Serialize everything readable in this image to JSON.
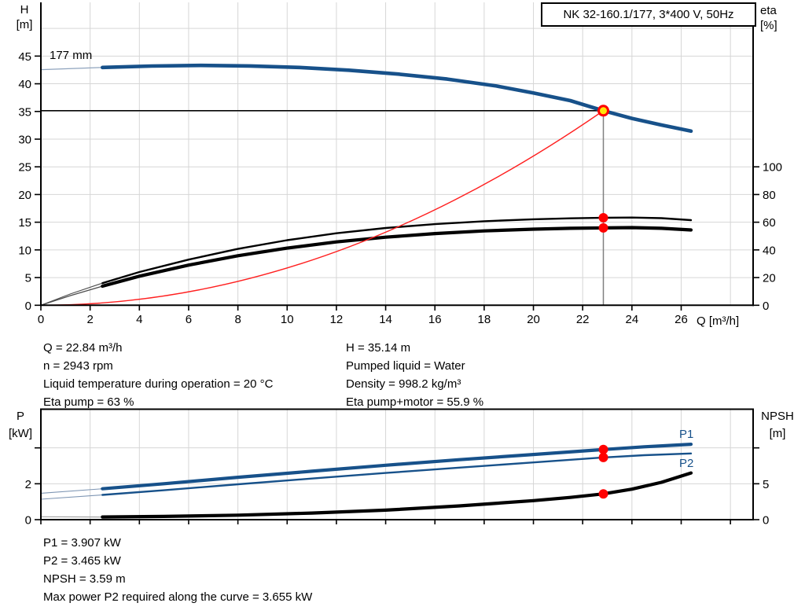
{
  "axes": {
    "h": "H",
    "h_unit": "[m]",
    "eta": "eta",
    "eta_unit": "[%]",
    "q": "Q [m³/h]",
    "p": "P",
    "p_unit": "[kW]",
    "npsh": "NPSH",
    "npsh_unit": "[m]"
  },
  "colors": {
    "grid": "#d6d6d6",
    "axis": "#000000",
    "text": "#000000",
    "curve_blue": "#17518a",
    "curve_red": "#ff1f1f",
    "dot_red": "#ff0000",
    "duty_yellow": "#ffe60a"
  },
  "info_left": [
    "Q = 22.84 m³/h",
    "n = 2943 rpm",
    "Liquid temperature during operation = 20 °C",
    "Eta pump = 63 %"
  ],
  "info_right": [
    "H = 35.14 m",
    "Pumped liquid = Water",
    "Density = 998.2 kg/m³",
    "Eta pump+motor = 55.9 %"
  ],
  "info_bottom": [
    "P1 = 3.907 kW",
    "P2 = 3.465 kW",
    "NPSH = 3.59 m",
    "Max power P2 required along the curve = 3.655 kW"
  ],
  "chart_data": [
    {
      "id": "hq-chart",
      "type": "line",
      "title": "NK 32-160.1/177, 3*400 V, 50Hz",
      "impeller_label": "177 mm",
      "xlabel": "Q [m³/h]",
      "ylabel_left": "H [m]",
      "ylabel_right": "eta [%]",
      "x_range": [
        0,
        28.92
      ],
      "y_left_range": [
        0,
        54.7
      ],
      "y_right_range": [
        0,
        218.8
      ],
      "grid": true,
      "duty_point": {
        "q": 22.84,
        "h": 35.14,
        "eta_pump": 63,
        "eta_pump_motor": 55.9
      },
      "x_ticks": [
        {
          "v": 0,
          "l": "0"
        },
        {
          "v": 2,
          "l": "2"
        },
        {
          "v": 4,
          "l": "4"
        },
        {
          "v": 6,
          "l": "6"
        },
        {
          "v": 8,
          "l": "8"
        },
        {
          "v": 10,
          "l": "10"
        },
        {
          "v": 12,
          "l": "12"
        },
        {
          "v": 14,
          "l": "14"
        },
        {
          "v": 16,
          "l": "16"
        },
        {
          "v": 18,
          "l": "18"
        },
        {
          "v": 20,
          "l": "20"
        },
        {
          "v": 22,
          "l": "22"
        },
        {
          "v": 24,
          "l": "24"
        },
        {
          "v": 26,
          "l": "26"
        }
      ],
      "y_left_ticks": [
        {
          "v": 0,
          "l": "0"
        },
        {
          "v": 5,
          "l": "5"
        },
        {
          "v": 10,
          "l": "10"
        },
        {
          "v": 15,
          "l": "15"
        },
        {
          "v": 20,
          "l": "20"
        },
        {
          "v": 25,
          "l": "25"
        },
        {
          "v": 30,
          "l": "30"
        },
        {
          "v": 35,
          "l": "35"
        },
        {
          "v": 40,
          "l": "40"
        },
        {
          "v": 45,
          "l": "45"
        }
      ],
      "y_right_ticks": [
        {
          "v": 0,
          "l": "0"
        },
        {
          "v": 20,
          "l": "20"
        },
        {
          "v": 40,
          "l": "40"
        },
        {
          "v": 60,
          "l": "60"
        },
        {
          "v": 80,
          "l": "80"
        },
        {
          "v": 100,
          "l": "100"
        }
      ],
      "x_grid": [
        2,
        4,
        6,
        8,
        10,
        12,
        14,
        16,
        18,
        20,
        22,
        24,
        26,
        28
      ],
      "y_grid": [
        5,
        10,
        15,
        20,
        25,
        30,
        35,
        40,
        45,
        50
      ],
      "series": [
        {
          "name": "pump-curve-lead",
          "axis": "h",
          "color": "#8ea3bd",
          "width": 1.2,
          "interactable": false,
          "points": [
            [
              0,
              42.55
            ],
            [
              2.5,
              42.95
            ]
          ]
        },
        {
          "name": "eta-pump-lead",
          "axis": "eta",
          "color": "#4d4d4d",
          "width": 1.1,
          "interactable": false,
          "points": [
            [
              0,
              0
            ],
            [
              1.2,
              8.2
            ],
            [
              2.5,
              16
            ]
          ]
        },
        {
          "name": "eta-pump-motor-lead",
          "axis": "eta",
          "color": "#4d4d4d",
          "width": 1.3,
          "interactable": false,
          "points": [
            [
              0,
              0
            ],
            [
              1.2,
              7
            ],
            [
              2.5,
              13.8
            ]
          ]
        },
        {
          "name": "eta-pump-curve",
          "axis": "eta",
          "color": "#000000",
          "width": 2.4,
          "interactable": true,
          "points": [
            [
              2.5,
              16
            ],
            [
              4,
              24
            ],
            [
              6,
              33
            ],
            [
              8,
              40.7
            ],
            [
              10,
              47
            ],
            [
              12,
              52
            ],
            [
              14,
              55.8
            ],
            [
              16,
              58.6
            ],
            [
              18,
              60.7
            ],
            [
              20,
              62.1
            ],
            [
              21.5,
              62.8
            ],
            [
              22.84,
              63.2
            ],
            [
              24,
              63.4
            ],
            [
              25.2,
              62.9
            ],
            [
              26.4,
              61.5
            ]
          ]
        },
        {
          "name": "eta-pump-motor-curve",
          "axis": "eta",
          "color": "#000000",
          "width": 4.2,
          "interactable": true,
          "points": [
            [
              2.5,
              13.8
            ],
            [
              4,
              21
            ],
            [
              6,
              29
            ],
            [
              8,
              35.8
            ],
            [
              10,
              41.3
            ],
            [
              12,
              45.8
            ],
            [
              14,
              49.2
            ],
            [
              16,
              51.8
            ],
            [
              18,
              53.7
            ],
            [
              20,
              55
            ],
            [
              21.5,
              55.6
            ],
            [
              22.84,
              55.9
            ],
            [
              24,
              56.1
            ],
            [
              25.2,
              55.6
            ],
            [
              26.4,
              54.4
            ]
          ]
        },
        {
          "name": "duty-flow-line",
          "axis": "h",
          "color": "#808080",
          "width": 1.5,
          "interactable": false,
          "points": [
            [
              22.84,
              0
            ],
            [
              22.84,
              35.14
            ]
          ]
        },
        {
          "name": "duty-head-line",
          "axis": "h",
          "color": "#000000",
          "width": 1.5,
          "interactable": false,
          "points": [
            [
              0,
              35.14
            ],
            [
              22.84,
              35.14
            ]
          ]
        },
        {
          "name": "system-curve",
          "axis": "h",
          "color": "#ff1f1f",
          "width": 1.4,
          "interactable": true,
          "bezier": true,
          "points": [
            [
              0,
              0
            ],
            [
              11.42,
              0
            ],
            [
              22.84,
              35.14
            ]
          ]
        },
        {
          "name": "pump-curve",
          "axis": "h",
          "color": "#17518a",
          "width": 4.6,
          "interactable": true,
          "points": [
            [
              2.5,
              42.95
            ],
            [
              4.5,
              43.2
            ],
            [
              6.5,
              43.32
            ],
            [
              8.5,
              43.22
            ],
            [
              10.5,
              42.95
            ],
            [
              12.5,
              42.45
            ],
            [
              14.5,
              41.75
            ],
            [
              16.5,
              40.85
            ],
            [
              18.5,
              39.6
            ],
            [
              20,
              38.35
            ],
            [
              21.5,
              36.95
            ],
            [
              22.84,
              35.14
            ],
            [
              24,
              33.75
            ],
            [
              25.2,
              32.55
            ],
            [
              26.4,
              31.45
            ]
          ]
        }
      ],
      "markers": [
        {
          "name": "eta-pump-motor-point",
          "axis": "eta",
          "x": 22.84,
          "y": 55.9,
          "r": 6,
          "fill": "#ff0000",
          "interactable": true
        },
        {
          "name": "eta-pump-point",
          "axis": "eta",
          "x": 22.84,
          "y": 63.2,
          "r": 6,
          "fill": "#ff0000",
          "interactable": true
        },
        {
          "name": "duty-point",
          "axis": "h",
          "x": 22.84,
          "y": 35.14,
          "r": 6,
          "fill": "#ffe60a",
          "stroke": "#ff0000",
          "stroke_width": 3,
          "interactable": true
        }
      ]
    },
    {
      "id": "pq-chart",
      "type": "line",
      "title": "",
      "xlabel": "",
      "ylabel_left": "P [kW]",
      "ylabel_right": "NPSH [m]",
      "x_range": [
        0,
        28.92
      ],
      "y_left_range": [
        0,
        6.15
      ],
      "y_right_range": [
        0,
        15.4
      ],
      "grid": true,
      "series_labels": {
        "p1": "P1",
        "p2": "P2"
      },
      "duty_point": {
        "q": 22.84,
        "p1": 3.907,
        "p2": 3.465,
        "npsh": 3.59
      },
      "x_ticks": [
        {
          "v": 0,
          "l": ""
        },
        {
          "v": 2,
          "l": ""
        },
        {
          "v": 4,
          "l": ""
        },
        {
          "v": 6,
          "l": ""
        },
        {
          "v": 8,
          "l": ""
        },
        {
          "v": 10,
          "l": ""
        },
        {
          "v": 12,
          "l": ""
        },
        {
          "v": 14,
          "l": ""
        },
        {
          "v": 16,
          "l": ""
        },
        {
          "v": 18,
          "l": ""
        },
        {
          "v": 20,
          "l": ""
        },
        {
          "v": 22,
          "l": ""
        },
        {
          "v": 24,
          "l": ""
        },
        {
          "v": 26,
          "l": ""
        },
        {
          "v": 28,
          "l": ""
        }
      ],
      "y_left_ticks": [
        {
          "v": 0,
          "l": "0"
        },
        {
          "v": 2,
          "l": "2"
        },
        {
          "v": 4,
          "l": ""
        }
      ],
      "y_right_ticks": [
        {
          "v": 0,
          "l": "0"
        },
        {
          "v": 5,
          "l": "5"
        },
        {
          "v": 10,
          "l": ""
        }
      ],
      "x_grid": [
        2,
        4,
        6,
        8,
        10,
        12,
        14,
        16,
        18,
        20,
        22,
        24,
        26,
        28
      ],
      "y_grid": [
        2,
        4
      ],
      "series": [
        {
          "name": "p1-curve-lead",
          "axis": "p",
          "color": "#7d95b3",
          "width": 1.1,
          "interactable": false,
          "points": [
            [
              0,
              1.47
            ],
            [
              2.5,
              1.72
            ]
          ]
        },
        {
          "name": "p2-curve-lead",
          "axis": "p",
          "color": "#7d95b3",
          "width": 1.1,
          "interactable": false,
          "points": [
            [
              0,
              1.14
            ],
            [
              2.5,
              1.38
            ]
          ]
        },
        {
          "name": "npsh-curve-lead",
          "axis": "npsh",
          "color": "#a3a3a3",
          "width": 1.2,
          "interactable": false,
          "points": [
            [
              0,
              0.4
            ],
            [
              2.5,
              0.37
            ]
          ]
        },
        {
          "name": "p2-curve",
          "axis": "p",
          "color": "#17518a",
          "width": 2.4,
          "interactable": true,
          "points": [
            [
              2.5,
              1.38
            ],
            [
              5,
              1.64
            ],
            [
              8,
              1.97
            ],
            [
              11,
              2.29
            ],
            [
              14,
              2.6
            ],
            [
              17,
              2.9
            ],
            [
              20,
              3.19
            ],
            [
              22.84,
              3.465
            ],
            [
              24.5,
              3.59
            ],
            [
              26.4,
              3.69
            ]
          ]
        },
        {
          "name": "p1-curve",
          "axis": "p",
          "color": "#17518a",
          "width": 4.2,
          "interactable": true,
          "points": [
            [
              2.5,
              1.72
            ],
            [
              5,
              2.0
            ],
            [
              8,
              2.36
            ],
            [
              11,
              2.7
            ],
            [
              14,
              3.03
            ],
            [
              17,
              3.34
            ],
            [
              20,
              3.63
            ],
            [
              22.84,
              3.907
            ],
            [
              24.5,
              4.06
            ],
            [
              26.4,
              4.2
            ]
          ]
        },
        {
          "name": "npsh-curve",
          "axis": "npsh",
          "color": "#000000",
          "width": 4.2,
          "interactable": true,
          "points": [
            [
              2.5,
              0.37
            ],
            [
              5,
              0.45
            ],
            [
              8,
              0.62
            ],
            [
              11,
              0.92
            ],
            [
              14,
              1.33
            ],
            [
              17,
              1.92
            ],
            [
              20,
              2.65
            ],
            [
              21.5,
              3.1
            ],
            [
              22.84,
              3.59
            ],
            [
              24,
              4.25
            ],
            [
              25.2,
              5.2
            ],
            [
              26.4,
              6.5
            ]
          ]
        }
      ],
      "markers": [
        {
          "name": "p1-point",
          "axis": "p",
          "x": 22.84,
          "y": 3.907,
          "r": 6,
          "fill": "#ff0000",
          "interactable": true
        },
        {
          "name": "p2-point",
          "axis": "p",
          "x": 22.84,
          "y": 3.465,
          "r": 6,
          "fill": "#ff0000",
          "interactable": true
        },
        {
          "name": "npsh-point",
          "axis": "npsh",
          "x": 22.84,
          "y": 3.59,
          "r": 6,
          "fill": "#ff0000",
          "interactable": true
        }
      ]
    }
  ]
}
